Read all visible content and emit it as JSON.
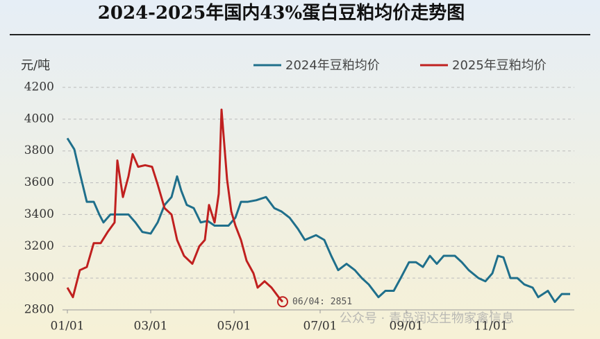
{
  "chart_data": {
    "type": "line",
    "title": "2024-2025年国内43%蛋白豆粕均价走势图",
    "ylabel": "元/吨",
    "watermark": "公众号 · 青岛润达生物家禽信息",
    "xlim": [
      0,
      365
    ],
    "xticks": [
      {
        "value": 0,
        "label": "01/01"
      },
      {
        "value": 60,
        "label": "03/01"
      },
      {
        "value": 120,
        "label": "05/01"
      },
      {
        "value": 182,
        "label": "07/01"
      },
      {
        "value": 244,
        "label": "09/01"
      },
      {
        "value": 305,
        "label": "11/01"
      }
    ],
    "ylim": [
      2800,
      4200
    ],
    "yticks": [
      2800,
      3000,
      3200,
      3400,
      3600,
      3800,
      4000,
      4200
    ],
    "grid": true,
    "legend": "top-right",
    "series": [
      {
        "name": "2024年豆粕均价",
        "color": "#1f6f8b",
        "x": [
          0,
          5,
          9,
          14,
          19,
          23,
          26,
          31,
          44,
          49,
          54,
          60,
          65,
          70,
          75,
          79,
          82,
          86,
          91,
          96,
          101,
          106,
          116,
          121,
          125,
          130,
          136,
          143,
          149,
          154,
          160,
          166,
          171,
          179,
          185,
          190,
          195,
          201,
          207,
          212,
          217,
          224,
          229,
          235,
          240,
          246,
          251,
          256,
          261,
          266,
          271,
          279,
          284,
          289,
          296,
          301,
          306,
          310,
          314,
          319,
          324,
          329,
          335,
          339,
          346,
          351,
          356,
          362
        ],
        "values": [
          3880,
          3810,
          3660,
          3480,
          3480,
          3400,
          3350,
          3400,
          3400,
          3350,
          3290,
          3280,
          3350,
          3460,
          3510,
          3640,
          3550,
          3460,
          3440,
          3350,
          3360,
          3330,
          3330,
          3380,
          3480,
          3480,
          3490,
          3510,
          3440,
          3420,
          3380,
          3310,
          3240,
          3270,
          3240,
          3140,
          3050,
          3090,
          3050,
          3000,
          2960,
          2880,
          2920,
          2920,
          3000,
          3100,
          3100,
          3070,
          3140,
          3090,
          3140,
          3140,
          3100,
          3050,
          3000,
          2980,
          3030,
          3140,
          3130,
          3000,
          3000,
          2960,
          2940,
          2880,
          2920,
          2850,
          2900,
          2900
        ]
      },
      {
        "name": "2025年豆粕均价",
        "color": "#c0201f",
        "x": [
          0,
          4,
          9,
          14,
          19,
          24,
          29,
          34,
          36,
          40,
          44,
          47,
          51,
          56,
          61,
          65,
          70,
          75,
          79,
          84,
          90,
          95,
          99,
          102,
          106,
          109,
          111,
          115,
          118,
          121,
          125,
          129,
          134,
          137,
          142,
          147,
          153,
          155
        ],
        "values": [
          2940,
          2880,
          3050,
          3070,
          3220,
          3220,
          3290,
          3350,
          3740,
          3510,
          3640,
          3780,
          3700,
          3710,
          3700,
          3590,
          3440,
          3400,
          3240,
          3140,
          3090,
          3200,
          3240,
          3460,
          3350,
          3530,
          4060,
          3620,
          3420,
          3330,
          3240,
          3110,
          3030,
          2940,
          2980,
          2940,
          2870,
          2851
        ]
      }
    ],
    "annotations": [
      {
        "text": "06/04: 2851",
        "x": 155,
        "y": 2851
      }
    ]
  }
}
